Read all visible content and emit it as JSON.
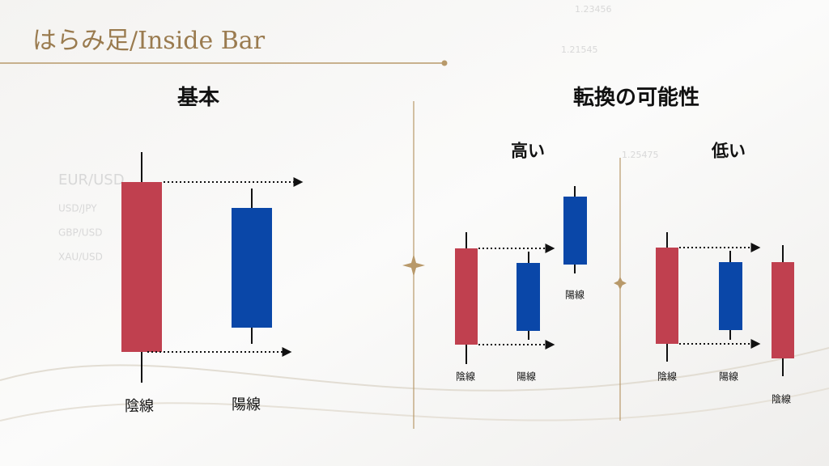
{
  "header": {
    "title": "はらみ足/Inside Bar"
  },
  "background": {
    "texts": [
      "1.23456",
      "1.21545",
      "1.25475",
      "EUR/USD",
      "USD/JPY",
      "GBP/USD",
      "XAU/USD"
    ]
  },
  "left": {
    "heading": "基本",
    "labels": [
      "陰線",
      "陽線"
    ]
  },
  "right": {
    "heading": "転換の可能性",
    "high": {
      "heading": "高い",
      "labels": [
        "陰線",
        "陽線",
        "陽線"
      ]
    },
    "low": {
      "heading": "低い",
      "labels": [
        "陰線",
        "陽線",
        "陰線"
      ]
    }
  }
}
